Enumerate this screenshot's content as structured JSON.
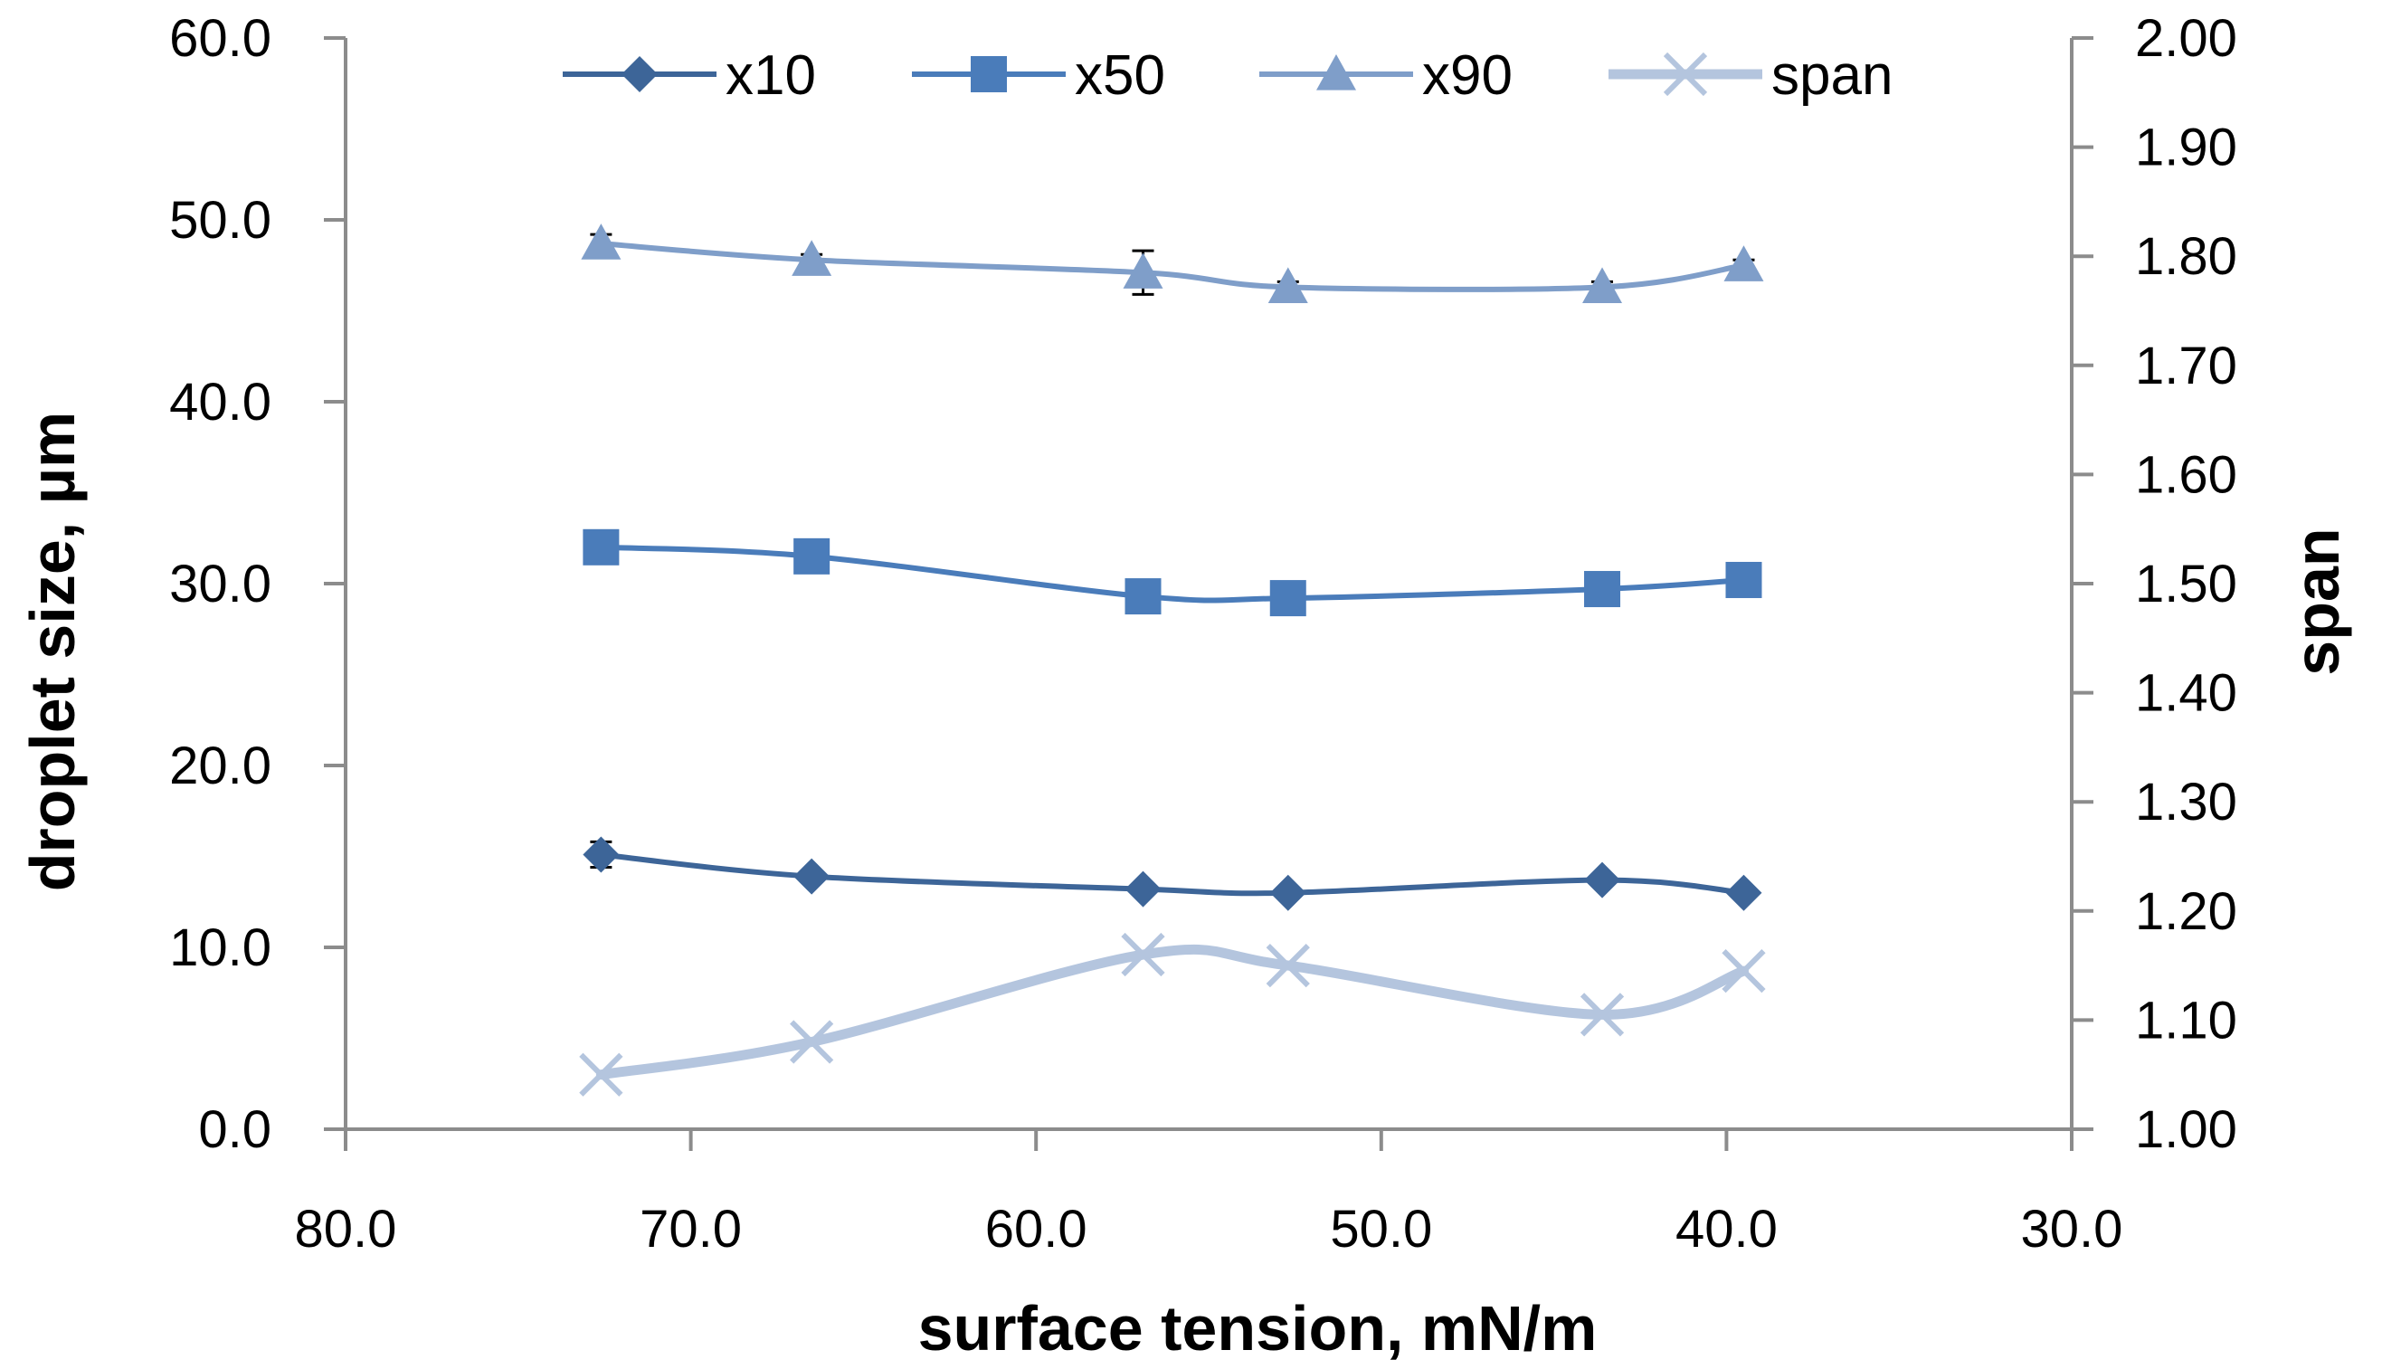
{
  "chart_data": {
    "type": "line",
    "title": "",
    "xlabel": "surface tension, mN/m",
    "ylabel": "droplet size, µm",
    "y2label": "span",
    "xlim": [
      80,
      30
    ],
    "ylim": [
      0,
      60
    ],
    "y2lim": [
      1.0,
      2.0
    ],
    "x_ticks": [
      "80.0",
      "70.0",
      "60.0",
      "50.0",
      "40.0",
      "30.0"
    ],
    "y_ticks": [
      "0.0",
      "10.0",
      "20.0",
      "30.0",
      "40.0",
      "50.0",
      "60.0"
    ],
    "y2_ticks": [
      "1.00",
      "1.10",
      "1.20",
      "1.30",
      "1.40",
      "1.50",
      "1.60",
      "1.70",
      "1.80",
      "1.90",
      "2.00"
    ],
    "x": [
      72.6,
      66.5,
      56.9,
      52.7,
      43.6,
      39.5
    ],
    "legend_position": "top",
    "series": [
      {
        "name": "x10",
        "axis": "left",
        "marker": "diamond",
        "color": "#3d6598",
        "values": [
          15.1,
          13.9,
          13.2,
          13.0,
          13.7,
          13.0
        ],
        "error": [
          0.7,
          0.3,
          0.2,
          0.2,
          0.3,
          0.2
        ]
      },
      {
        "name": "x50",
        "axis": "left",
        "marker": "square",
        "color": "#4a7cba",
        "values": [
          32.0,
          31.5,
          29.3,
          29.2,
          29.7,
          30.2
        ],
        "error": [
          0.3,
          0.3,
          0.3,
          0.3,
          0.3,
          0.3
        ]
      },
      {
        "name": "x90",
        "axis": "left",
        "marker": "triangle",
        "color": "#7f9ec9",
        "values": [
          48.7,
          47.8,
          47.1,
          46.3,
          46.3,
          47.5
        ],
        "error": [
          0.5,
          0.3,
          1.2,
          0.3,
          0.3,
          0.3
        ]
      },
      {
        "name": "span",
        "axis": "right",
        "marker": "x",
        "color": "#b4c5de",
        "values": [
          1.05,
          1.08,
          1.16,
          1.15,
          1.105,
          1.145
        ],
        "error": null
      }
    ]
  }
}
